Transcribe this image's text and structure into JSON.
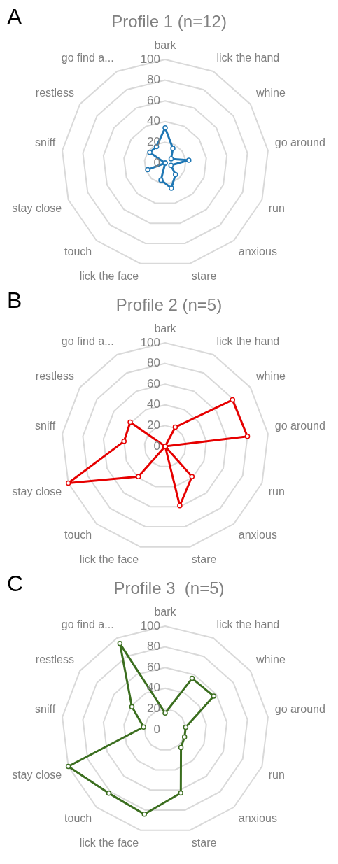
{
  "chart_data": [
    {
      "type": "radar",
      "title": "Profile 1 (n=12)",
      "annotations": [
        "A"
      ],
      "categories": [
        "bark",
        "lick the hand",
        "whine",
        "go around",
        "run",
        "anxious",
        "stare",
        "lick the face",
        "touch",
        "stay close",
        "sniff",
        "restless",
        "go find a..."
      ],
      "series": [
        {
          "color": "#1f77b4",
          "values": [
            34,
            16,
            7,
            23,
            6,
            15,
            25,
            17,
            0,
            18,
            0,
            18,
            18
          ]
        }
      ],
      "ylim": [
        0,
        100
      ],
      "yticks": [
        0,
        20,
        40,
        60,
        80,
        100
      ],
      "grid": true,
      "legend": false,
      "marker": "circle"
    },
    {
      "type": "radar",
      "title": "Profile 2 (n=5)",
      "annotations": [
        "B"
      ],
      "categories": [
        "bark",
        "lick the hand",
        "whine",
        "go around",
        "run",
        "anxious",
        "stare",
        "lick the face",
        "touch",
        "stay close",
        "sniff",
        "restless",
        "go find a..."
      ],
      "series": [
        {
          "color": "#e60000",
          "values": [
            0,
            21,
            79,
            80,
            0,
            39,
            59,
            0,
            39,
            100,
            40,
            41,
            0
          ]
        }
      ],
      "ylim": [
        0,
        100
      ],
      "yticks": [
        0,
        20,
        40,
        60,
        80,
        100
      ],
      "grid": true,
      "legend": false,
      "marker": "circle"
    },
    {
      "type": "radar",
      "title": "Profile 3  (n=5)",
      "annotations": [
        "C"
      ],
      "categories": [
        "bark",
        "lick the hand",
        "whine",
        "go around",
        "run",
        "anxious",
        "stare",
        "lick the face",
        "touch",
        "stay close",
        "sniff",
        "restless",
        "go find a..."
      ],
      "series": [
        {
          "color": "#3b6e1f",
          "values": [
            16,
            56,
            57,
            20,
            20,
            23,
            63,
            84,
            82,
            100,
            21,
            39,
            94
          ]
        }
      ],
      "ylim": [
        0,
        100
      ],
      "yticks": [
        0,
        20,
        40,
        60,
        80,
        100
      ],
      "grid": true,
      "legend": false,
      "marker": "circle"
    }
  ]
}
